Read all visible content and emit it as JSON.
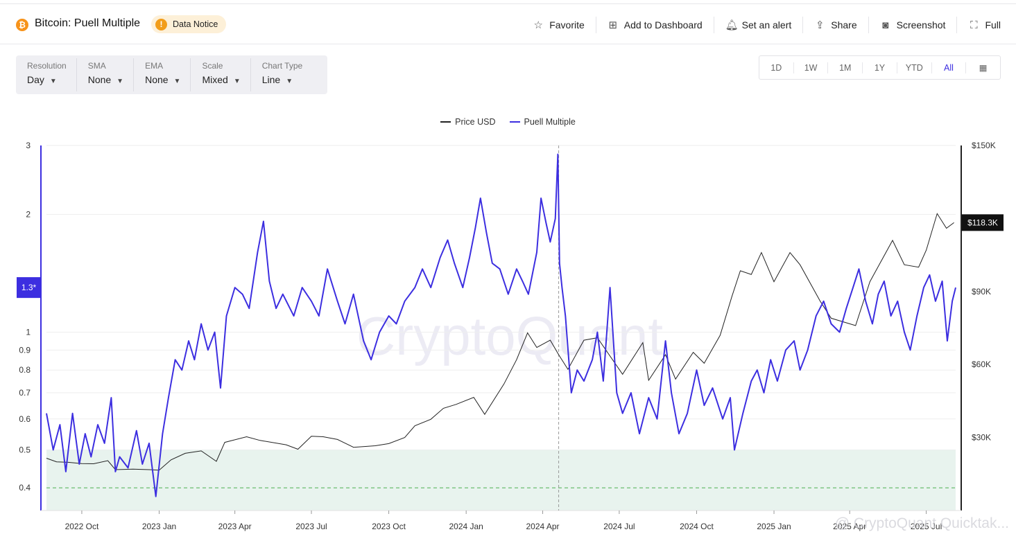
{
  "header": {
    "coin_symbol": "₿",
    "title": "Bitcoin: Puell Multiple",
    "notice": "Data Notice",
    "actions": [
      {
        "label": "Favorite",
        "icon": "star-icon"
      },
      {
        "label": "Add to Dashboard",
        "icon": "add-dashboard-icon"
      },
      {
        "label": "Set an alert",
        "icon": "bell-icon"
      },
      {
        "label": "Share",
        "icon": "share-icon"
      },
      {
        "label": "Screenshot",
        "icon": "camera-icon"
      },
      {
        "label": "Full",
        "icon": "fullscreen-icon"
      }
    ]
  },
  "controls": [
    {
      "label": "Resolution",
      "value": "Day"
    },
    {
      "label": "SMA",
      "value": "None"
    },
    {
      "label": "EMA",
      "value": "None"
    },
    {
      "label": "Scale",
      "value": "Mixed"
    },
    {
      "label": "Chart Type",
      "value": "Line"
    }
  ],
  "ranges": {
    "items": [
      "1D",
      "1W",
      "1M",
      "1Y",
      "YTD",
      "All"
    ],
    "active": "All"
  },
  "watermark": "CryptoQuant",
  "footer_watermark": "@ CryptoQuant Quicktak...",
  "colors": {
    "price": "#222222",
    "puell": "#3c2ee0",
    "band": "#e8f3ee",
    "threshold": "#4caf50"
  },
  "chart_data": {
    "type": "line",
    "legend": [
      "Price USD",
      "Puell Multiple"
    ],
    "x_ticks": [
      "2022 Oct",
      "2023 Jan",
      "2023 Apr",
      "2023 Jul",
      "2023 Oct",
      "2024 Jan",
      "2024 Apr",
      "2024 Jul",
      "2024 Oct",
      "2025 Jan",
      "2025 Apr",
      "2025 Jul"
    ],
    "left_axis": {
      "scale": "log",
      "ticks": [
        "0.4",
        "0.5",
        "0.6",
        "0.7",
        "0.8",
        "0.9",
        "1",
        "2",
        "3"
      ],
      "tick_values": [
        0.4,
        0.5,
        0.6,
        0.7,
        0.8,
        0.9,
        1,
        2,
        3
      ],
      "range": [
        0.35,
        3.0
      ]
    },
    "right_axis": {
      "scale": "linear",
      "ticks": [
        "$30K",
        "$60K",
        "$90K",
        "$150K"
      ],
      "tick_values": [
        30000,
        60000,
        90000,
        150000
      ],
      "range": [
        0,
        150000
      ]
    },
    "current_puell_label": "1.3*",
    "current_puell": 1.3,
    "current_price_label": "$118.3K",
    "current_price": 118300,
    "band": {
      "from": 0.35,
      "to": 0.5
    },
    "threshold": 0.4,
    "crosshair_date": "2024-04-20",
    "x_range": [
      "2022-08-20",
      "2025-08-05"
    ],
    "series": [
      {
        "name": "Price USD",
        "axis": "right",
        "points": [
          [
            "2022-08-20",
            21500
          ],
          [
            "2022-09-01",
            20000
          ],
          [
            "2022-09-15",
            19800
          ],
          [
            "2022-10-01",
            19300
          ],
          [
            "2022-10-15",
            19200
          ],
          [
            "2022-11-01",
            20500
          ],
          [
            "2022-11-10",
            16800
          ],
          [
            "2022-12-01",
            17000
          ],
          [
            "2022-12-20",
            16800
          ],
          [
            "2023-01-01",
            16600
          ],
          [
            "2023-01-15",
            20800
          ],
          [
            "2023-02-01",
            23500
          ],
          [
            "2023-02-20",
            24500
          ],
          [
            "2023-03-10",
            20200
          ],
          [
            "2023-03-20",
            28000
          ],
          [
            "2023-04-15",
            30300
          ],
          [
            "2023-05-01",
            28800
          ],
          [
            "2023-06-01",
            27000
          ],
          [
            "2023-06-15",
            25200
          ],
          [
            "2023-07-01",
            30500
          ],
          [
            "2023-07-15",
            30300
          ],
          [
            "2023-08-01",
            29200
          ],
          [
            "2023-08-20",
            26000
          ],
          [
            "2023-09-15",
            26600
          ],
          [
            "2023-10-01",
            27500
          ],
          [
            "2023-10-20",
            30000
          ],
          [
            "2023-11-01",
            34800
          ],
          [
            "2023-11-20",
            37500
          ],
          [
            "2023-12-05",
            42000
          ],
          [
            "2023-12-20",
            43600
          ],
          [
            "2024-01-10",
            46500
          ],
          [
            "2024-01-23",
            39500
          ],
          [
            "2024-02-15",
            52000
          ],
          [
            "2024-03-01",
            62000
          ],
          [
            "2024-03-14",
            73000
          ],
          [
            "2024-03-25",
            67000
          ],
          [
            "2024-04-10",
            70000
          ],
          [
            "2024-04-20",
            64000
          ],
          [
            "2024-05-01",
            58000
          ],
          [
            "2024-05-20",
            70000
          ],
          [
            "2024-06-05",
            71000
          ],
          [
            "2024-06-25",
            61000
          ],
          [
            "2024-07-05",
            56000
          ],
          [
            "2024-07-29",
            69000
          ],
          [
            "2024-08-05",
            53500
          ],
          [
            "2024-08-25",
            64000
          ],
          [
            "2024-09-06",
            54000
          ],
          [
            "2024-09-27",
            65000
          ],
          [
            "2024-10-10",
            60500
          ],
          [
            "2024-10-29",
            72000
          ],
          [
            "2024-11-12",
            88000
          ],
          [
            "2024-11-22",
            98500
          ],
          [
            "2024-12-05",
            97000
          ],
          [
            "2024-12-17",
            106000
          ],
          [
            "2025-01-01",
            94000
          ],
          [
            "2025-01-20",
            106000
          ],
          [
            "2025-02-01",
            101000
          ],
          [
            "2025-02-25",
            86000
          ],
          [
            "2025-03-10",
            79000
          ],
          [
            "2025-04-08",
            76000
          ],
          [
            "2025-04-25",
            94000
          ],
          [
            "2025-05-22",
            111000
          ],
          [
            "2025-06-05",
            101000
          ],
          [
            "2025-06-22",
            100000
          ],
          [
            "2025-07-01",
            107000
          ],
          [
            "2025-07-14",
            122000
          ],
          [
            "2025-07-25",
            116000
          ],
          [
            "2025-08-03",
            118300
          ]
        ]
      },
      {
        "name": "Puell Multiple",
        "axis": "left",
        "points": [
          [
            "2022-08-20",
            0.62
          ],
          [
            "2022-08-28",
            0.5
          ],
          [
            "2022-09-05",
            0.58
          ],
          [
            "2022-09-12",
            0.44
          ],
          [
            "2022-09-20",
            0.62
          ],
          [
            "2022-09-28",
            0.46
          ],
          [
            "2022-10-05",
            0.55
          ],
          [
            "2022-10-12",
            0.48
          ],
          [
            "2022-10-20",
            0.58
          ],
          [
            "2022-10-28",
            0.52
          ],
          [
            "2022-11-05",
            0.68
          ],
          [
            "2022-11-10",
            0.44
          ],
          [
            "2022-11-15",
            0.48
          ],
          [
            "2022-11-25",
            0.45
          ],
          [
            "2022-12-05",
            0.56
          ],
          [
            "2022-12-12",
            0.46
          ],
          [
            "2022-12-20",
            0.52
          ],
          [
            "2022-12-28",
            0.38
          ],
          [
            "2023-01-05",
            0.55
          ],
          [
            "2023-01-12",
            0.68
          ],
          [
            "2023-01-20",
            0.85
          ],
          [
            "2023-01-28",
            0.8
          ],
          [
            "2023-02-05",
            0.95
          ],
          [
            "2023-02-12",
            0.85
          ],
          [
            "2023-02-20",
            1.05
          ],
          [
            "2023-02-28",
            0.9
          ],
          [
            "2023-03-08",
            1.0
          ],
          [
            "2023-03-15",
            0.72
          ],
          [
            "2023-03-22",
            1.1
          ],
          [
            "2023-04-01",
            1.3
          ],
          [
            "2023-04-10",
            1.25
          ],
          [
            "2023-04-18",
            1.15
          ],
          [
            "2023-04-28",
            1.6
          ],
          [
            "2023-05-05",
            1.92
          ],
          [
            "2023-05-12",
            1.35
          ],
          [
            "2023-05-20",
            1.15
          ],
          [
            "2023-05-28",
            1.25
          ],
          [
            "2023-06-10",
            1.1
          ],
          [
            "2023-06-20",
            1.3
          ],
          [
            "2023-07-01",
            1.2
          ],
          [
            "2023-07-10",
            1.1
          ],
          [
            "2023-07-20",
            1.45
          ],
          [
            "2023-08-01",
            1.2
          ],
          [
            "2023-08-10",
            1.05
          ],
          [
            "2023-08-20",
            1.25
          ],
          [
            "2023-09-01",
            0.95
          ],
          [
            "2023-09-10",
            0.85
          ],
          [
            "2023-09-20",
            1.0
          ],
          [
            "2023-10-01",
            1.1
          ],
          [
            "2023-10-10",
            1.05
          ],
          [
            "2023-10-20",
            1.2
          ],
          [
            "2023-11-01",
            1.3
          ],
          [
            "2023-11-10",
            1.45
          ],
          [
            "2023-11-20",
            1.3
          ],
          [
            "2023-12-01",
            1.55
          ],
          [
            "2023-12-10",
            1.72
          ],
          [
            "2023-12-18",
            1.5
          ],
          [
            "2023-12-28",
            1.3
          ],
          [
            "2024-01-05",
            1.55
          ],
          [
            "2024-01-12",
            1.85
          ],
          [
            "2024-01-18",
            2.2
          ],
          [
            "2024-01-25",
            1.8
          ],
          [
            "2024-02-01",
            1.5
          ],
          [
            "2024-02-10",
            1.45
          ],
          [
            "2024-02-20",
            1.25
          ],
          [
            "2024-03-01",
            1.45
          ],
          [
            "2024-03-08",
            1.35
          ],
          [
            "2024-03-15",
            1.25
          ],
          [
            "2024-03-25",
            1.6
          ],
          [
            "2024-03-30",
            2.2
          ],
          [
            "2024-04-05",
            1.9
          ],
          [
            "2024-04-10",
            1.7
          ],
          [
            "2024-04-16",
            1.95
          ],
          [
            "2024-04-19",
            2.85
          ],
          [
            "2024-04-21",
            1.5
          ],
          [
            "2024-04-24",
            1.3
          ],
          [
            "2024-04-28",
            1.1
          ],
          [
            "2024-05-05",
            0.7
          ],
          [
            "2024-05-12",
            0.8
          ],
          [
            "2024-05-20",
            0.75
          ],
          [
            "2024-05-30",
            0.85
          ],
          [
            "2024-06-05",
            1.0
          ],
          [
            "2024-06-12",
            0.75
          ],
          [
            "2024-06-20",
            1.3
          ],
          [
            "2024-06-28",
            0.7
          ],
          [
            "2024-07-05",
            0.62
          ],
          [
            "2024-07-15",
            0.7
          ],
          [
            "2024-07-25",
            0.55
          ],
          [
            "2024-08-05",
            0.68
          ],
          [
            "2024-08-15",
            0.6
          ],
          [
            "2024-08-25",
            0.95
          ],
          [
            "2024-09-01",
            0.7
          ],
          [
            "2024-09-10",
            0.55
          ],
          [
            "2024-09-20",
            0.62
          ],
          [
            "2024-10-01",
            0.8
          ],
          [
            "2024-10-10",
            0.65
          ],
          [
            "2024-10-20",
            0.72
          ],
          [
            "2024-11-01",
            0.6
          ],
          [
            "2024-11-10",
            0.68
          ],
          [
            "2024-11-15",
            0.5
          ],
          [
            "2024-11-25",
            0.62
          ],
          [
            "2024-12-05",
            0.75
          ],
          [
            "2024-12-12",
            0.8
          ],
          [
            "2024-12-20",
            0.7
          ],
          [
            "2024-12-28",
            0.85
          ],
          [
            "2025-01-05",
            0.75
          ],
          [
            "2025-01-15",
            0.9
          ],
          [
            "2025-01-25",
            0.95
          ],
          [
            "2025-02-01",
            0.8
          ],
          [
            "2025-02-10",
            0.9
          ],
          [
            "2025-02-20",
            1.1
          ],
          [
            "2025-03-01",
            1.2
          ],
          [
            "2025-03-10",
            1.05
          ],
          [
            "2025-03-20",
            1.0
          ],
          [
            "2025-03-28",
            1.15
          ],
          [
            "2025-04-05",
            1.3
          ],
          [
            "2025-04-12",
            1.45
          ],
          [
            "2025-04-20",
            1.2
          ],
          [
            "2025-04-28",
            1.05
          ],
          [
            "2025-05-05",
            1.25
          ],
          [
            "2025-05-12",
            1.35
          ],
          [
            "2025-05-20",
            1.1
          ],
          [
            "2025-05-28",
            1.2
          ],
          [
            "2025-06-05",
            1.0
          ],
          [
            "2025-06-12",
            0.9
          ],
          [
            "2025-06-20",
            1.1
          ],
          [
            "2025-06-28",
            1.3
          ],
          [
            "2025-07-05",
            1.4
          ],
          [
            "2025-07-12",
            1.2
          ],
          [
            "2025-07-20",
            1.35
          ],
          [
            "2025-07-26",
            0.95
          ],
          [
            "2025-08-01",
            1.2
          ],
          [
            "2025-08-05",
            1.3
          ]
        ]
      }
    ]
  }
}
